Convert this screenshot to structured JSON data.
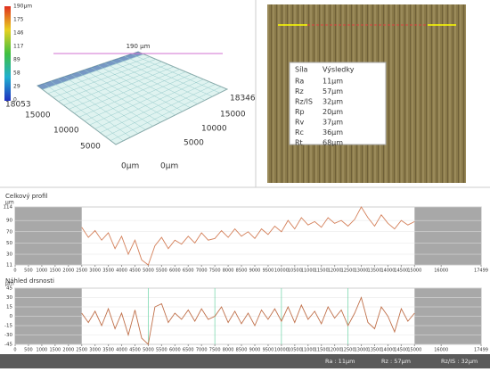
{
  "surface_3d": {
    "colorbar_labels": [
      "190μm",
      "175",
      "146",
      "117",
      "89",
      "58",
      "29",
      "0"
    ],
    "height_label": "190 μm",
    "right_axis_labels": [
      "18346",
      "15000",
      "10000",
      "5000",
      "0μm"
    ],
    "left_axis_labels": [
      "18053",
      "15000",
      "10000",
      "5000",
      "0μm"
    ]
  },
  "results_table": {
    "header": [
      "Síla",
      "Výsledky"
    ],
    "rows": [
      [
        "Ra",
        "11μm"
      ],
      [
        "Rz",
        "57μm"
      ],
      [
        "Rz/IS",
        "32μm"
      ],
      [
        "Rp",
        "20μm"
      ],
      [
        "Rv",
        "37μm"
      ],
      [
        "Rc",
        "36μm"
      ],
      [
        "Rt",
        "68μm"
      ]
    ]
  },
  "chart_data": [
    {
      "type": "line",
      "title": "Celkový profil",
      "y_unit": "μm",
      "color": "#d4805a",
      "x": [
        2500,
        2750,
        3000,
        3250,
        3500,
        3750,
        4000,
        4250,
        4500,
        4750,
        5000,
        5250,
        5500,
        5750,
        6000,
        6250,
        6500,
        6750,
        7000,
        7250,
        7500,
        7750,
        8000,
        8250,
        8500,
        8750,
        9000,
        9250,
        9500,
        9750,
        10000,
        10250,
        10500,
        10750,
        11000,
        11250,
        11500,
        11750,
        12000,
        12250,
        12500,
        12750,
        13000,
        13250,
        13500,
        13750,
        14000,
        14250,
        14500,
        14750,
        15000
      ],
      "values": [
        78,
        60,
        72,
        55,
        68,
        40,
        62,
        30,
        55,
        20,
        11,
        45,
        60,
        40,
        55,
        48,
        62,
        50,
        68,
        55,
        58,
        72,
        60,
        75,
        62,
        70,
        58,
        75,
        65,
        80,
        70,
        90,
        75,
        95,
        82,
        88,
        78,
        95,
        85,
        90,
        80,
        92,
        114,
        95,
        80,
        100,
        85,
        75,
        90,
        82,
        88
      ],
      "xlim": [
        0,
        17499
      ],
      "xticks": [
        0,
        500,
        1000,
        1500,
        2000,
        2500,
        3000,
        3500,
        4000,
        4500,
        5000,
        5500,
        6000,
        6500,
        7000,
        7500,
        8000,
        8500,
        9000,
        9500,
        10000,
        10500,
        11000,
        11500,
        12000,
        12500,
        13000,
        13500,
        14000,
        14500,
        15000,
        16000,
        17499
      ],
      "ylim": [
        11,
        114
      ],
      "yticks": [
        11,
        30,
        50,
        70,
        90,
        114
      ],
      "shaded_ranges": [
        [
          0,
          2500
        ],
        [
          15000,
          17499
        ]
      ]
    },
    {
      "type": "line",
      "title": "Náhled drsnosti",
      "y_unit": "μm",
      "color": "#c0704a",
      "x": [
        2500,
        2750,
        3000,
        3250,
        3500,
        3750,
        4000,
        4250,
        4500,
        4750,
        5000,
        5250,
        5500,
        5750,
        6000,
        6250,
        6500,
        6750,
        7000,
        7250,
        7500,
        7750,
        8000,
        8250,
        8500,
        8750,
        9000,
        9250,
        9500,
        9750,
        10000,
        10250,
        10500,
        10750,
        11000,
        11250,
        11500,
        11750,
        12000,
        12250,
        12500,
        12750,
        13000,
        13250,
        13500,
        13750,
        14000,
        14250,
        14500,
        14750,
        15000
      ],
      "values": [
        5,
        -10,
        8,
        -15,
        12,
        -20,
        5,
        -30,
        10,
        -35,
        -45,
        15,
        20,
        -10,
        5,
        -5,
        10,
        -8,
        12,
        -5,
        0,
        15,
        -10,
        8,
        -12,
        5,
        -15,
        10,
        -5,
        12,
        -8,
        15,
        -10,
        18,
        -5,
        8,
        -12,
        15,
        -3,
        10,
        -15,
        5,
        30,
        -10,
        -20,
        15,
        0,
        -25,
        12,
        -8,
        5
      ],
      "xlim": [
        0,
        17499
      ],
      "xticks": [
        0,
        500,
        1000,
        1500,
        2000,
        2500,
        3000,
        3500,
        4000,
        4500,
        5000,
        5500,
        6000,
        6500,
        7000,
        7500,
        8000,
        8500,
        9000,
        9500,
        10000,
        10500,
        11000,
        11500,
        12000,
        12500,
        13000,
        13500,
        14000,
        14500,
        15000,
        16000,
        17499
      ],
      "ylim": [
        -45,
        45
      ],
      "yticks": [
        -45,
        -30,
        -15,
        0,
        15,
        30,
        45
      ],
      "shaded_ranges": [
        [
          0,
          2500
        ],
        [
          15000,
          17499
        ]
      ],
      "markers": [
        5000,
        7500,
        10000,
        12500
      ]
    }
  ],
  "footer": [
    "Ra : 11μm",
    "Rz : 57μm",
    "Rz/IS : 32μm"
  ]
}
